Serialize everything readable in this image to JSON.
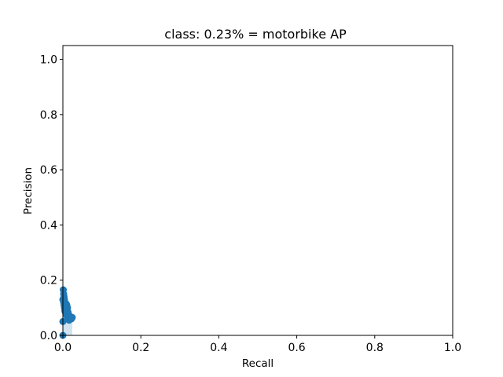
{
  "chart_data": {
    "type": "scatter",
    "title": "class: 0.23% = motorbike AP",
    "xlabel": "Recall",
    "ylabel": "Precision",
    "xlim": [
      0.0,
      1.0
    ],
    "ylim": [
      0.0,
      1.05
    ],
    "xticks": [
      "0.0",
      "0.2",
      "0.4",
      "0.6",
      "0.8",
      "1.0"
    ],
    "yticks": [
      "0.0",
      "0.2",
      "0.4",
      "0.6",
      "0.8",
      "1.0"
    ],
    "grid": false,
    "legend": "none",
    "colors": {
      "marker": "#1f77b4",
      "fill": "#1f77b4",
      "axes": "#000000"
    },
    "series": [
      {
        "x": [
          0.0,
          0.0,
          0.0,
          0.001,
          0.002,
          0.002,
          0.003,
          0.003,
          0.004,
          0.004,
          0.005,
          0.005,
          0.006,
          0.006,
          0.007,
          0.008,
          0.008,
          0.009,
          0.01,
          0.01,
          0.011,
          0.012,
          0.012,
          0.013,
          0.014,
          0.015,
          0.016,
          0.017,
          0.018,
          0.019,
          0.02,
          0.021,
          0.022,
          0.023,
          0.024
        ],
        "y": [
          0.0,
          0.05,
          0.13,
          0.165,
          0.15,
          0.12,
          0.14,
          0.11,
          0.13,
          0.1,
          0.12,
          0.09,
          0.11,
          0.085,
          0.1,
          0.08,
          0.115,
          0.075,
          0.09,
          0.11,
          0.07,
          0.1,
          0.065,
          0.085,
          0.06,
          0.075,
          0.055,
          0.07,
          0.06,
          0.065,
          0.06,
          0.065,
          0.06,
          0.065,
          0.065
        ]
      }
    ]
  }
}
